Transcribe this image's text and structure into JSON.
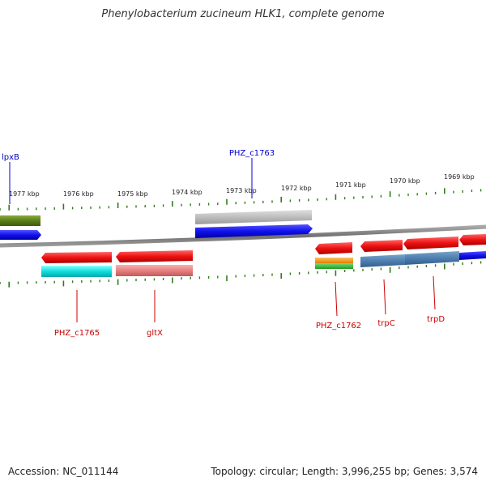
{
  "title": "Phenylobacterium zucineum HLK1, complete genome",
  "footer": {
    "accession": "Accession: NC_011144",
    "summary": "Topology: circular; Length: 3,996,255 bp; Genes: 3,574"
  },
  "scale_labels": [
    "1977 kbp",
    "1976 kbp",
    "1975 kbp",
    "1974 kbp",
    "1973 kbp",
    "1972 kbp",
    "1971 kbp",
    "1970 kbp",
    "1969 kbp"
  ],
  "gene_labels": [
    {
      "name": "lpxB",
      "strand": "+"
    },
    {
      "name": "PHZ_c1763",
      "strand": "+"
    },
    {
      "name": "PHZ_c1765",
      "strand": "-"
    },
    {
      "name": "gltX",
      "strand": "-"
    },
    {
      "name": "PHZ_c1762",
      "strand": "-"
    },
    {
      "name": "trpC",
      "strand": "-"
    },
    {
      "name": "trpD",
      "strand": "-"
    }
  ],
  "colors": {
    "forward_label": "#0000cc",
    "reverse_label": "#cc0000",
    "tick": "#2e7d1a",
    "backbone": "#808080",
    "red": "#ee1111",
    "blue": "#1111ee",
    "gray": "#b8b8b8",
    "olive": "#5a7f1a",
    "cyan": "#11dddd",
    "pink": "#e88080",
    "orange": "#ff9900",
    "green": "#33bb33",
    "steel": "#4f7fb0"
  }
}
